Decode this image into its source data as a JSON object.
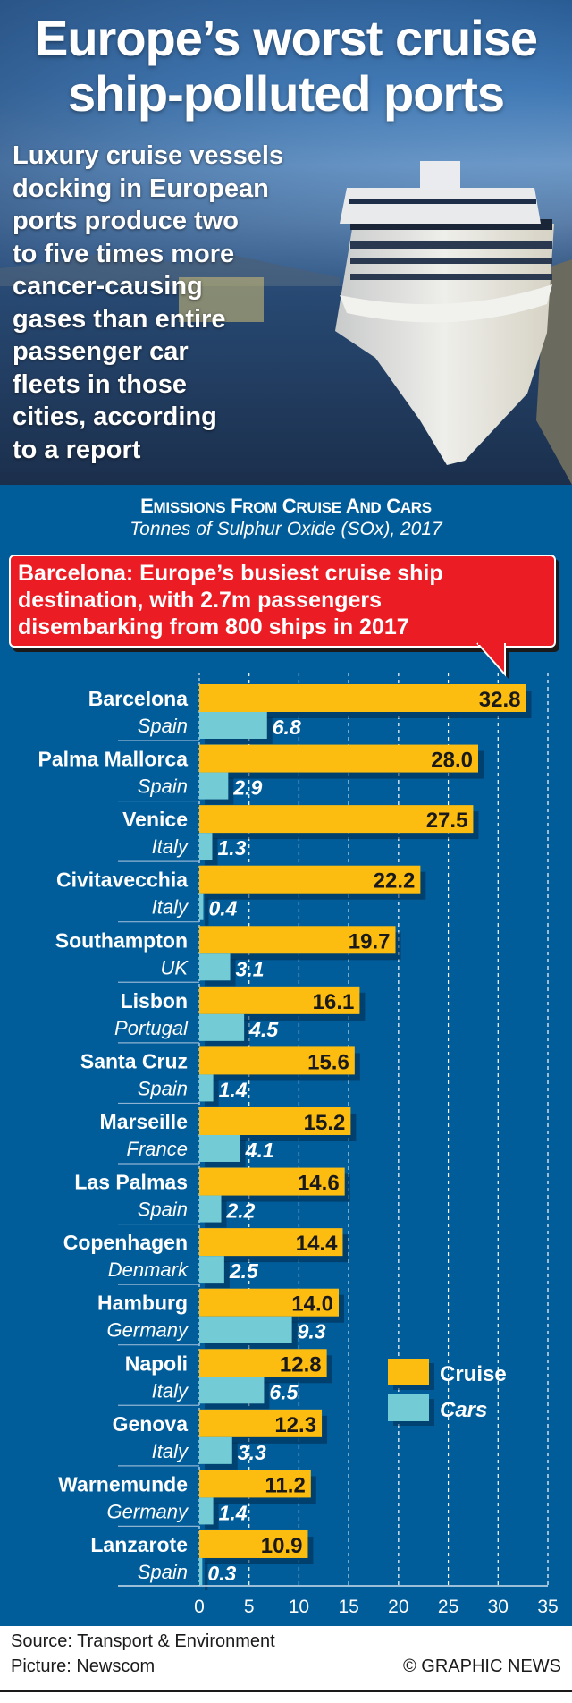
{
  "header": {
    "title_line1": "Europe’s worst cruise",
    "title_line2": "ship-polluted ports",
    "intro_lines": [
      "Luxury cruise vessels",
      "docking in European",
      "ports produce two",
      "to five times more",
      "cancer-causing",
      "gases than entire",
      "passenger car",
      "fleets in those",
      "cities, according",
      "to a report"
    ]
  },
  "callout": {
    "lines": [
      "Barcelona: Europe’s busiest cruise ship",
      "destination, with 2.7m passengers",
      "disembarking from 800 ships in 2017"
    ]
  },
  "colors": {
    "cruise": "#fdbd10",
    "cars": "#73ccd5",
    "background": "#005d9a",
    "callout": "#ec1c24"
  },
  "chart_data": {
    "type": "bar",
    "orientation": "horizontal",
    "title": "EMISSIONS FROM CRUISE AND CARS",
    "subtitle": "Tonnes of Sulphur Oxide (SOx), 2017",
    "xlabel": "",
    "ylabel": "",
    "xlim": [
      0,
      35
    ],
    "xticks": [
      0,
      5,
      10,
      15,
      20,
      25,
      30,
      35
    ],
    "grid": true,
    "legend_position": "right",
    "categories": [
      "Barcelona",
      "Palma Mallorca",
      "Venice",
      "Civitavecchia",
      "Southampton",
      "Lisbon",
      "Santa Cruz",
      "Marseille",
      "Las Palmas",
      "Copenhagen",
      "Hamburg",
      "Napoli",
      "Genova",
      "Warnemunde",
      "Lanzarote"
    ],
    "countries": [
      "Spain",
      "Spain",
      "Italy",
      "Italy",
      "UK",
      "Portugal",
      "Spain",
      "France",
      "Spain",
      "Denmark",
      "Germany",
      "Italy",
      "Italy",
      "Germany",
      "Spain"
    ],
    "series": [
      {
        "name": "Cruise",
        "values": [
          32.8,
          28.0,
          27.5,
          22.2,
          19.7,
          16.1,
          15.6,
          15.2,
          14.6,
          14.4,
          14.0,
          12.8,
          12.3,
          11.2,
          10.9
        ]
      },
      {
        "name": "Cars",
        "values": [
          6.8,
          2.9,
          1.3,
          0.4,
          3.1,
          4.5,
          1.4,
          4.1,
          2.2,
          2.5,
          9.3,
          6.5,
          3.3,
          1.4,
          0.3
        ]
      }
    ]
  },
  "footer": {
    "source": "Source: Transport & Environment",
    "picture": "Picture: Newscom",
    "credit": "© GRAPHIC NEWS"
  }
}
